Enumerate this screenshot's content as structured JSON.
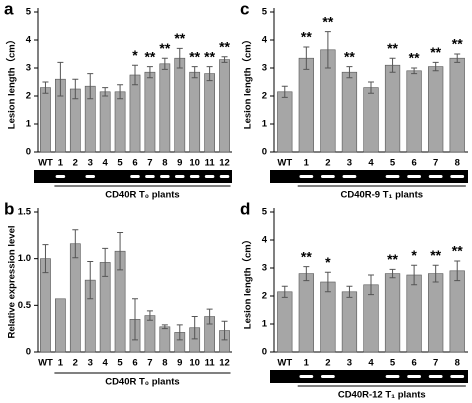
{
  "chart_data": [
    {
      "type": "bar",
      "panel_label": "a",
      "y_label": "Lesion length（cm）",
      "x_label": "CD40R T₀ plants",
      "categories": [
        "WT",
        "1",
        "2",
        "3",
        "4",
        "5",
        "6",
        "7",
        "8",
        "9",
        "10",
        "11",
        "12"
      ],
      "values": [
        2.3,
        2.6,
        2.25,
        2.35,
        2.15,
        2.15,
        2.75,
        2.85,
        3.15,
        3.35,
        2.85,
        2.8,
        3.3
      ],
      "errors": [
        0.2,
        0.6,
        0.35,
        0.45,
        0.15,
        0.25,
        0.35,
        0.2,
        0.2,
        0.35,
        0.2,
        0.25,
        0.1
      ],
      "annotations": [
        null,
        null,
        null,
        null,
        null,
        null,
        "*",
        "**",
        "**",
        "**",
        "**",
        "**",
        "**"
      ],
      "gel_bands": [
        false,
        true,
        false,
        true,
        false,
        false,
        true,
        true,
        true,
        true,
        true,
        true,
        true
      ],
      "color": "#a6a6a6",
      "ylim": [
        0,
        5
      ],
      "yticks": [
        0,
        1,
        2,
        3,
        4,
        5
      ]
    },
    {
      "type": "bar",
      "panel_label": "c",
      "y_label": "Lesion length（cm）",
      "x_label": "CD40R-9 T₁ plants",
      "categories": [
        "WT",
        "1",
        "2",
        "3",
        "4",
        "5",
        "6",
        "7",
        "8"
      ],
      "values": [
        2.15,
        3.35,
        3.65,
        2.85,
        2.3,
        3.1,
        2.9,
        3.05,
        3.35
      ],
      "errors": [
        0.2,
        0.4,
        0.65,
        0.2,
        0.2,
        0.25,
        0.1,
        0.15,
        0.15
      ],
      "annotations": [
        null,
        "**",
        "**",
        "**",
        null,
        "**",
        "**",
        "**",
        "**"
      ],
      "gel_bands": [
        false,
        true,
        true,
        true,
        false,
        true,
        true,
        true,
        true
      ],
      "color": "#a6a6a6",
      "ylim": [
        0,
        5
      ],
      "yticks": [
        0,
        1,
        2,
        3,
        4,
        5
      ]
    },
    {
      "type": "bar",
      "panel_label": "b",
      "y_label": "Relative expression level",
      "x_label": "CD40R T₀ plants",
      "categories": [
        "WT",
        "1",
        "2",
        "3",
        "4",
        "5",
        "6",
        "7",
        "8",
        "9",
        "10",
        "11",
        "12"
      ],
      "values": [
        1.0,
        0.57,
        1.16,
        0.77,
        0.96,
        1.08,
        0.35,
        0.39,
        0.27,
        0.21,
        0.26,
        0.38,
        0.23
      ],
      "errors": [
        0.15,
        0,
        0.15,
        0.2,
        0.15,
        0.2,
        0.22,
        0.05,
        0.02,
        0.08,
        0.12,
        0.08,
        0.1
      ],
      "color": "#a6a6a6",
      "ylim": [
        0,
        1.5
      ],
      "yticks": [
        0,
        0.5,
        {
          "value": 1,
          "label": "1.0"
        },
        1.5
      ]
    },
    {
      "type": "bar",
      "panel_label": "d",
      "y_label": "Lesion length（cm）",
      "x_label": "CD40R-12 T₁ plants",
      "categories": [
        "WT",
        "1",
        "2",
        "3",
        "4",
        "5",
        "6",
        "7",
        "8"
      ],
      "values": [
        2.15,
        2.8,
        2.5,
        2.15,
        2.4,
        2.8,
        2.75,
        2.8,
        2.9
      ],
      "errors": [
        0.2,
        0.25,
        0.35,
        0.2,
        0.35,
        0.15,
        0.35,
        0.3,
        0.35
      ],
      "annotations": [
        null,
        "**",
        "*",
        null,
        null,
        "**",
        "*",
        "**",
        "**"
      ],
      "gel_bands": [
        false,
        true,
        true,
        false,
        false,
        true,
        true,
        true,
        true
      ],
      "color": "#a6a6a6",
      "ylim": [
        0,
        5
      ],
      "yticks": [
        0,
        1,
        2,
        3,
        4,
        5
      ]
    }
  ]
}
